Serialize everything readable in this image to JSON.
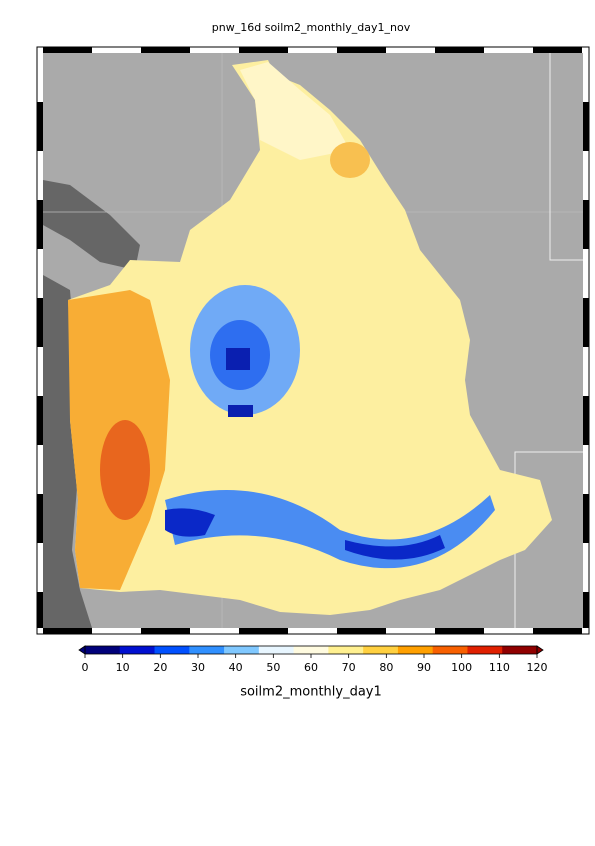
{
  "title": "pnw_16d soilm2_monthly_day1_nov",
  "colorbar": {
    "label": "soilm2_monthly_day1",
    "lim": [
      0,
      120
    ],
    "ticks": [
      0,
      10,
      20,
      30,
      40,
      50,
      60,
      70,
      80,
      90,
      100,
      110,
      120
    ],
    "colors": [
      "#00007a",
      "#0010d0",
      "#0050ff",
      "#3090ff",
      "#80c8ff",
      "#e8f6ff",
      "#fffbe0",
      "#fff090",
      "#ffd040",
      "#ffa000",
      "#f86000",
      "#e02000",
      "#900000"
    ]
  }
}
